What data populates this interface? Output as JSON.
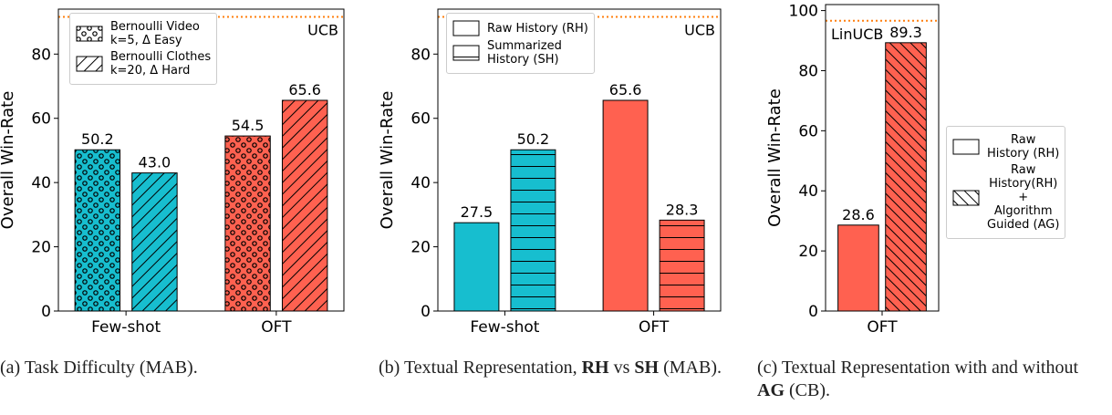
{
  "chart_data": [
    {
      "type": "bar",
      "ylabel": "Overall Win-Rate",
      "categories": [
        "Few-shot",
        "OFT"
      ],
      "category_colors": [
        "#17becf",
        "#ff6150"
      ],
      "series": [
        {
          "name": "Bernoulli Video\nk=5, Δ Easy",
          "hatch": "o",
          "values": [
            50.2,
            54.5
          ]
        },
        {
          "name": "Bernoulli Clothes\nk=20, Δ Hard",
          "hatch": "/",
          "values": [
            43.0,
            65.6
          ],
          "value_labels": [
            "43.0",
            "65.6"
          ]
        }
      ],
      "ylim": [
        0,
        94
      ],
      "yticks": [
        0,
        20,
        40,
        60,
        80
      ],
      "reference": {
        "label": "UCB",
        "value": 91.6,
        "color": "#ff7f0e"
      },
      "legend": "upper left",
      "caption": [
        {
          "text": "(a) Task Difficulty (MAB)."
        }
      ]
    },
    {
      "type": "bar",
      "ylabel": "Overall Win-Rate",
      "categories": [
        "Few-shot",
        "OFT"
      ],
      "category_colors": [
        "#17becf",
        "#ff6150"
      ],
      "series": [
        {
          "name": "Raw History (RH)",
          "hatch": "",
          "values": [
            27.5,
            65.6
          ]
        },
        {
          "name": "Summarized\nHistory (SH)",
          "hatch": "-",
          "values": [
            50.2,
            28.3
          ]
        }
      ],
      "ylim": [
        0,
        94
      ],
      "yticks": [
        0,
        20,
        40,
        60,
        80
      ],
      "reference": {
        "label": "UCB",
        "value": 91.6,
        "color": "#ff7f0e"
      },
      "legend": "upper left",
      "caption": [
        {
          "text": "(b) Textual Representation, "
        },
        {
          "text": "RH",
          "bold": true
        },
        {
          "text": " vs "
        },
        {
          "text": "SH",
          "bold": true
        },
        {
          "text": " (MAB)."
        }
      ]
    },
    {
      "type": "bar",
      "ylabel": "Overall Win-Rate",
      "categories": [
        "OFT"
      ],
      "category_colors": [
        "#ff6150"
      ],
      "series": [
        {
          "name": "Raw\nHistory (RH)",
          "hatch": "",
          "values": [
            28.6
          ]
        },
        {
          "name": "Raw\nHistory(RH)\n+\nAlgorithm\nGuided (AG)",
          "hatch": "\\",
          "values": [
            89.3
          ]
        }
      ],
      "ylim": [
        0,
        102
      ],
      "yticks": [
        0,
        20,
        40,
        60,
        80,
        100
      ],
      "reference": {
        "label": "LinUCB",
        "value": 96.6,
        "color": "#ff7f0e"
      },
      "legend": "outside right",
      "caption": [
        {
          "text": "(c) Textual Representation with and without "
        },
        {
          "text": "AG",
          "bold": true
        },
        {
          "text": " (CB)."
        }
      ]
    }
  ]
}
